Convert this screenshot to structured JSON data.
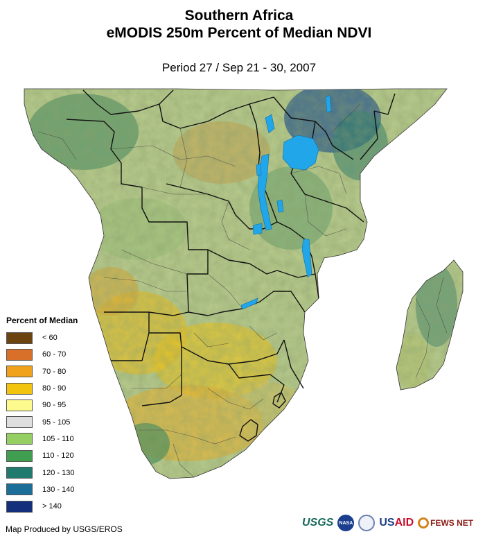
{
  "title": {
    "line1": "Southern Africa",
    "line2": "eMODIS 250m Percent of Median NDVI"
  },
  "subtitle": "Period 27 / Sep 21 - 30, 2007",
  "legend": {
    "title": "Percent of Median",
    "items": [
      {
        "label": "< 60",
        "color": "#6b4410"
      },
      {
        "label": "60 - 70",
        "color": "#d9702a"
      },
      {
        "label": "70 - 80",
        "color": "#f0a21c"
      },
      {
        "label": "80 - 90",
        "color": "#f2c40d"
      },
      {
        "label": "90 - 95",
        "color": "#fdfb8e"
      },
      {
        "label": "95 - 105",
        "color": "#dedede"
      },
      {
        "label": "105 - 110",
        "color": "#95cf63"
      },
      {
        "label": "110 - 120",
        "color": "#3f9e4f"
      },
      {
        "label": "120 - 130",
        "color": "#217a6e"
      },
      {
        "label": "130 - 140",
        "color": "#1b6e97"
      },
      {
        "label": "> 140",
        "color": "#14307d"
      }
    ]
  },
  "credit": "Map Produced by USGS/EROS",
  "logos": {
    "usgs": "USGS",
    "nasa": "NASA",
    "usaid_us": "US",
    "usaid_aid": "AID",
    "fews": "FEWS NET"
  },
  "colors": {
    "land_base": "#b5c98a",
    "lake": "#22a6ea",
    "border": "#222222"
  }
}
